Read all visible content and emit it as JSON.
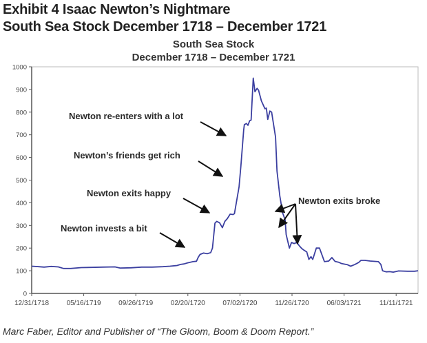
{
  "header": {
    "title_line1": "Exhibit 4  Isaac Newton’s Nightmare",
    "title_line2": "South Sea Stock December 1718 – December 1721"
  },
  "caption": "Marc Faber, Editor and Publisher of “The Gloom, Boom & Doom Report.”",
  "colors": {
    "line": "#3b3fa0",
    "axis": "#555555",
    "text": "#2a2a2a"
  },
  "chart_data": {
    "type": "line",
    "title": "South Sea Stock",
    "subtitle": "December 1718 – December 1721",
    "xlabel": "",
    "ylabel": "",
    "ylim": [
      0,
      1000
    ],
    "yticks": [
      0,
      100,
      200,
      300,
      400,
      500,
      600,
      700,
      800,
      900,
      1000
    ],
    "xticks": [
      "12/31/1718",
      "05/16/1719",
      "09/26/1719",
      "02/20/1720",
      "07/02/1720",
      "11/26/1720",
      "06/03/1721",
      "11/11/1721"
    ],
    "grid": false,
    "legend": null,
    "series": [
      {
        "name": "South Sea Stock price",
        "note": "x = fraction of time axis from 12/31/1718 (0) to right edge (1); y = price",
        "points": [
          [
            0.0,
            120
          ],
          [
            0.02,
            118
          ],
          [
            0.035,
            116
          ],
          [
            0.055,
            119
          ],
          [
            0.075,
            117
          ],
          [
            0.09,
            110
          ],
          [
            0.11,
            110
          ],
          [
            0.14,
            114
          ],
          [
            0.17,
            115
          ],
          [
            0.2,
            116
          ],
          [
            0.235,
            117
          ],
          [
            0.25,
            112
          ],
          [
            0.28,
            113
          ],
          [
            0.31,
            116
          ],
          [
            0.34,
            116
          ],
          [
            0.37,
            118
          ],
          [
            0.39,
            120
          ],
          [
            0.41,
            123
          ],
          [
            0.42,
            128
          ],
          [
            0.43,
            130
          ],
          [
            0.44,
            135
          ],
          [
            0.455,
            140
          ],
          [
            0.465,
            142
          ],
          [
            0.47,
            160
          ],
          [
            0.475,
            172
          ],
          [
            0.485,
            178
          ],
          [
            0.495,
            175
          ],
          [
            0.505,
            180
          ],
          [
            0.51,
            200
          ],
          [
            0.517,
            310
          ],
          [
            0.522,
            318
          ],
          [
            0.53,
            312
          ],
          [
            0.538,
            290
          ],
          [
            0.545,
            318
          ],
          [
            0.552,
            330
          ],
          [
            0.56,
            350
          ],
          [
            0.568,
            348
          ],
          [
            0.572,
            352
          ],
          [
            0.585,
            470
          ],
          [
            0.59,
            560
          ],
          [
            0.598,
            720
          ],
          [
            0.6,
            745
          ],
          [
            0.606,
            750
          ],
          [
            0.61,
            742
          ],
          [
            0.615,
            762
          ],
          [
            0.619,
            765
          ],
          [
            0.625,
            950
          ],
          [
            0.63,
            890
          ],
          [
            0.636,
            905
          ],
          [
            0.64,
            897
          ],
          [
            0.648,
            850
          ],
          [
            0.658,
            815
          ],
          [
            0.662,
            818
          ],
          [
            0.666,
            768
          ],
          [
            0.672,
            805
          ],
          [
            0.677,
            800
          ],
          [
            0.688,
            690
          ],
          [
            0.692,
            540
          ],
          [
            0.7,
            430
          ],
          [
            0.708,
            355
          ],
          [
            0.715,
            325
          ],
          [
            0.718,
            260
          ],
          [
            0.727,
            200
          ],
          [
            0.733,
            225
          ],
          [
            0.74,
            220
          ],
          [
            0.748,
            225
          ],
          [
            0.755,
            210
          ],
          [
            0.762,
            198
          ],
          [
            0.769,
            190
          ],
          [
            0.776,
            183
          ],
          [
            0.782,
            150
          ],
          [
            0.788,
            162
          ],
          [
            0.793,
            150
          ],
          [
            0.803,
            200
          ],
          [
            0.812,
            200
          ],
          [
            0.819,
            170
          ],
          [
            0.826,
            140
          ],
          [
            0.838,
            143
          ],
          [
            0.847,
            158
          ],
          [
            0.856,
            141
          ],
          [
            0.865,
            138
          ],
          [
            0.874,
            132
          ],
          [
            0.89,
            127
          ],
          [
            0.9,
            120
          ],
          [
            0.912,
            128
          ],
          [
            0.923,
            137
          ],
          [
            0.929,
            146
          ],
          [
            0.94,
            146
          ],
          [
            0.955,
            143
          ],
          [
            0.978,
            140
          ],
          [
            0.985,
            128
          ],
          [
            0.99,
            100
          ],
          [
            1.0,
            95
          ],
          [
            1.01,
            96
          ],
          [
            1.02,
            94
          ],
          [
            1.035,
            99
          ],
          [
            1.06,
            98
          ],
          [
            1.08,
            98
          ],
          [
            1.09,
            100
          ]
        ]
      }
    ],
    "annotations": [
      {
        "text": "Newton invests a bit",
        "event_value": 178
      },
      {
        "text": "Newton exits happy",
        "event_value": 350
      },
      {
        "text": "Newton’s friends get rich",
        "event_value": 520
      },
      {
        "text": "Newton re-enters with a lot",
        "event_value": 750
      },
      {
        "text": "Newton exits broke",
        "event_value": 200
      }
    ]
  }
}
